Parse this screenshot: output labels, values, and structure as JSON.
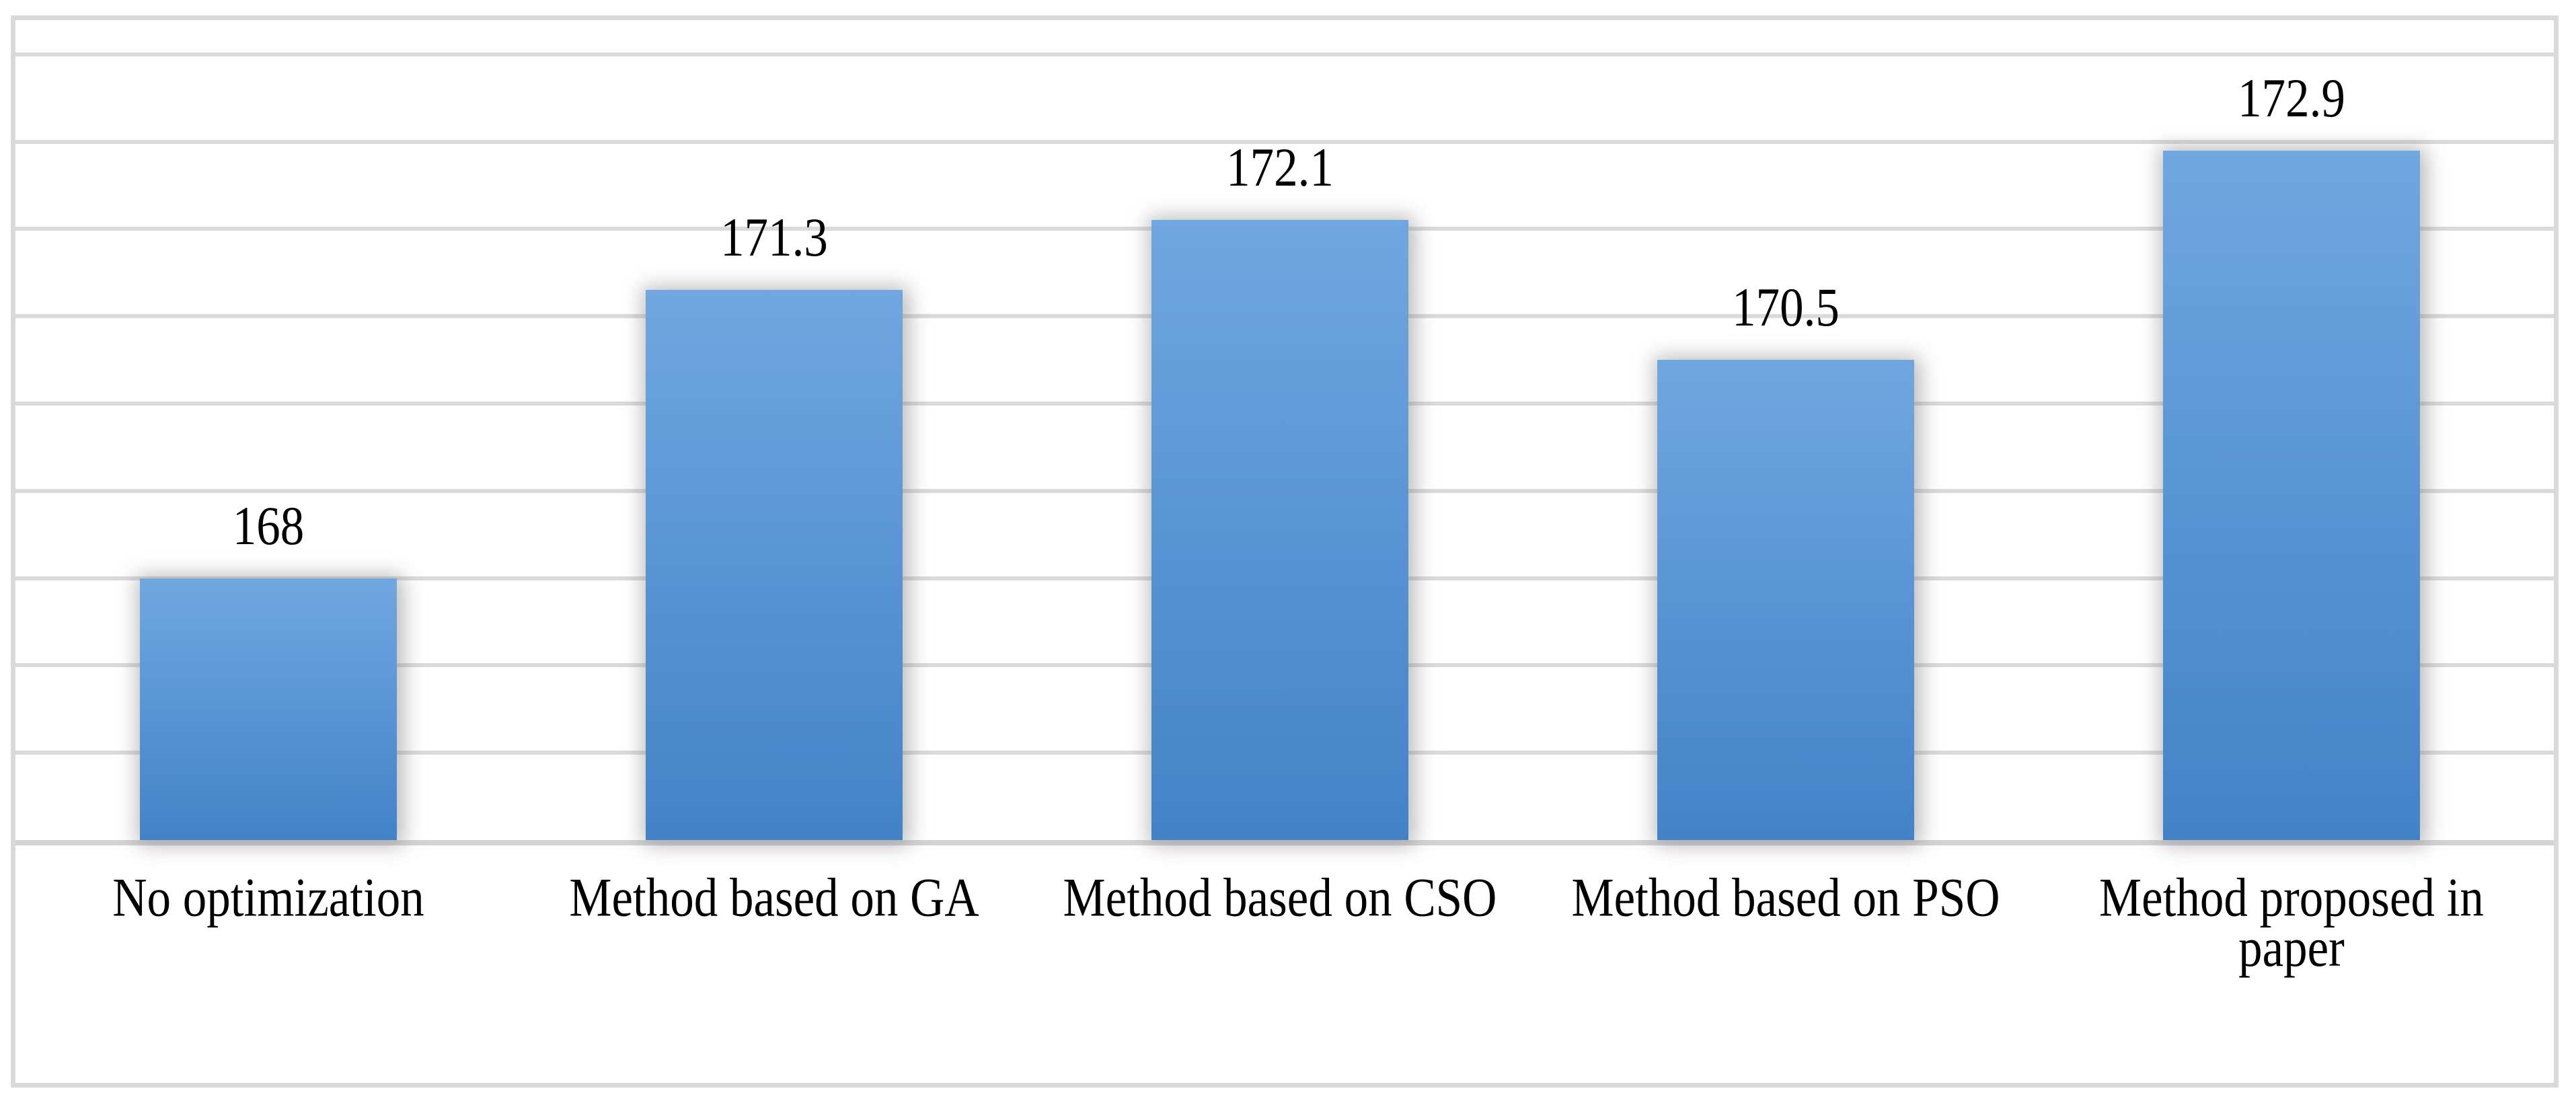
{
  "chart_data": {
    "type": "bar",
    "categories": [
      "No optimization",
      "Method based on GA",
      "Method based on CSO",
      "Method based on PSO",
      "Method proposed in paper"
    ],
    "values": [
      168,
      171.3,
      172.1,
      170.5,
      172.9
    ],
    "data_labels": [
      "168",
      "171.3",
      "172.1",
      "170.5",
      "172.9"
    ],
    "title": "",
    "xlabel": "",
    "ylabel": "",
    "ylim": [
      165,
      174
    ],
    "gridline_step": 1,
    "grid": true,
    "legend": false,
    "colors": {
      "bar_top": "#71a7e0",
      "bar_bottom": "#4283c7",
      "gridline": "#dadada",
      "axis_line": "#d4d4d4",
      "chart_border": "#d9d9d9",
      "label_text": "#000000",
      "background": "#ffffff"
    }
  }
}
